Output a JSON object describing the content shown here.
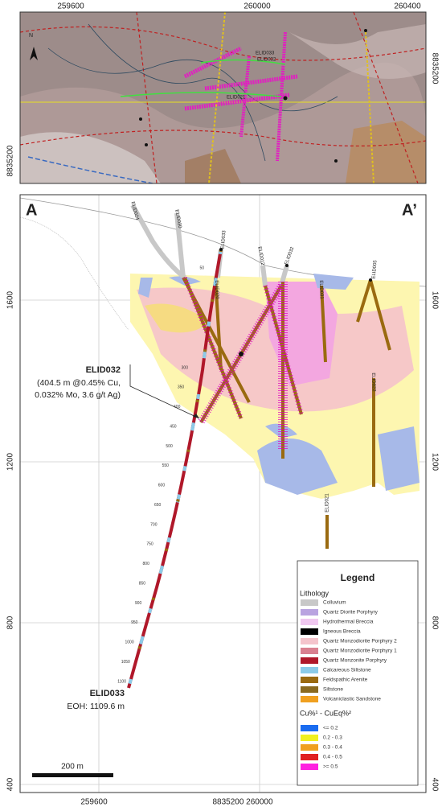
{
  "plan_map": {
    "north": "N",
    "x_labels": [
      "259600",
      "260000",
      "260400"
    ],
    "y_label_left": "8835200",
    "y_label_right": "8835200",
    "hole_labels": [
      "ELID033",
      "ELID032",
      "ELID021"
    ]
  },
  "section": {
    "start_label": "A",
    "end_label": "A’",
    "elevations_left": [
      "1600",
      "1200",
      "800",
      "400"
    ],
    "elevations_right": [
      "1600",
      "1200",
      "800",
      "400"
    ],
    "x_labels": [
      "259600",
      "8835200 260000"
    ],
    "holes": [
      "ELID024",
      "ELID030",
      "ELID033",
      "ELID012",
      "ELID032",
      "ELID031",
      "ELID005",
      "ELID020",
      "ELID022",
      "ELID021"
    ],
    "depths": [
      "50",
      "300",
      "350",
      "400",
      "450",
      "500",
      "550",
      "600",
      "650",
      "700",
      "750",
      "800",
      "850",
      "900",
      "950",
      "1000",
      "1050",
      "1100"
    ],
    "annotation": {
      "hole": "ELID032",
      "lines": [
        "(404.5 m @0.45% Cu,",
        "0.032% Mo, 3.6 g/t Ag)"
      ]
    },
    "annotation_prefix": "",
    "eoh": {
      "hole": "ELID033",
      "text": "EOH: 1109.6 m"
    },
    "scale": "200 m"
  },
  "legend": {
    "title": "Legend",
    "lithology_heading": "Lithology",
    "lithology": [
      {
        "label": "Colluvium",
        "color": "#c8c8c8"
      },
      {
        "label": "Quartz Diorite Porphyry",
        "color": "#b9a3e0"
      },
      {
        "label": "Hydrothermal Breccia",
        "color": "#f0c8f0"
      },
      {
        "label": "Igneous Breccia",
        "color": "#000000"
      },
      {
        "label": "Quartz Monzodiorite Porphyry 2",
        "color": "#f4c4cc"
      },
      {
        "label": "Quartz Monzodiorite Porphyry 1",
        "color": "#d98090"
      },
      {
        "label": "Quartz Monzonite Porphyry",
        "color": "#b0182a"
      },
      {
        "label": "Calcareous Siltstone",
        "color": "#8ccbe8"
      },
      {
        "label": "Feldspathic Arenite",
        "color": "#9a6a10"
      },
      {
        "label": "Siltstone",
        "color": "#8a6a20"
      },
      {
        "label": "Volcaniclastic Sandstone",
        "color": "#f0a020"
      }
    ],
    "grade_heading": "Cu%¹ - CuEq%²",
    "grades": [
      {
        "label": "<= 0.2",
        "color": "#1a6cf0"
      },
      {
        "label": "0.2 - 0.3",
        "color": "#f0f020"
      },
      {
        "label": "0.3 - 0.4",
        "color": "#f0a020"
      },
      {
        "label": "0.4 - 0.5",
        "color": "#e02020"
      },
      {
        "label": ">= 0.5",
        "color": "#ff20e0"
      }
    ]
  }
}
